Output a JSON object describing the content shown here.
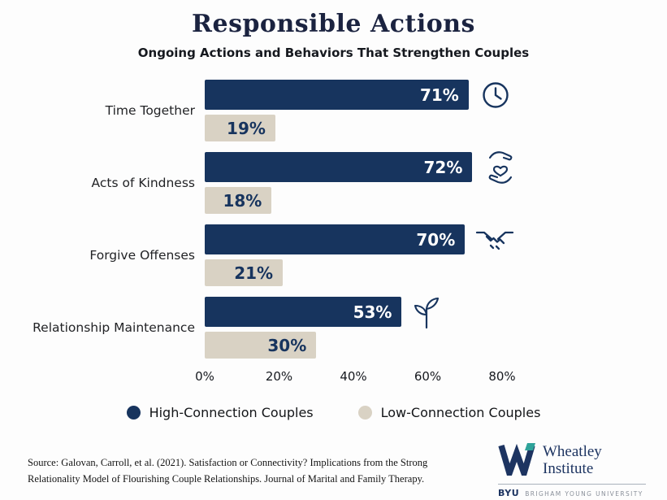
{
  "header": {
    "title": "Responsible Actions",
    "subtitle": "Ongoing Actions and Behaviors That Strengthen Couples"
  },
  "chart_data": {
    "type": "bar",
    "orientation": "horizontal",
    "title": "Responsible Actions",
    "subtitle": "Ongoing Actions and Behaviors That Strengthen Couples",
    "categories": [
      "Time Together",
      "Acts of Kindness",
      "Forgive Offenses",
      "Relationship Maintenance"
    ],
    "series": [
      {
        "name": "High-Connection Couples",
        "color": "#17345e",
        "label_color": "#ffffff",
        "values": [
          71,
          72,
          70,
          53
        ]
      },
      {
        "name": "Low-Connection Couples",
        "color": "#d9d2c4",
        "label_color": "#17345e",
        "values": [
          19,
          18,
          21,
          30
        ]
      }
    ],
    "value_suffix": "%",
    "xlim": [
      0,
      80
    ],
    "x_ticks": [
      "0%",
      "20%",
      "40%",
      "60%",
      "80%"
    ],
    "row_icons": [
      "clock-icon",
      "hands-heart-icon",
      "handshake-icon",
      "sprout-icon"
    ],
    "grid": false,
    "legend_position": "bottom"
  },
  "legend": {
    "items": [
      {
        "label": "High-Connection Couples",
        "color": "#17345e"
      },
      {
        "label": "Low-Connection Couples",
        "color": "#d9d2c4"
      }
    ]
  },
  "footer": {
    "source": "Source: Galovan, Carroll, et al. (2021). Satisfaction or Connectivity? Implications from the Strong Relationality Model of Flourishing Couple Relationships. Journal of Marital and Family Therapy.",
    "logo": {
      "name_line1": "Wheatley",
      "name_line2": "Institute",
      "byu": "BYU",
      "university": "BRIGHAM YOUNG UNIVERSITY"
    }
  },
  "colors": {
    "navy": "#17345e",
    "beige": "#d9d2c4",
    "teal": "#2fa39a"
  }
}
